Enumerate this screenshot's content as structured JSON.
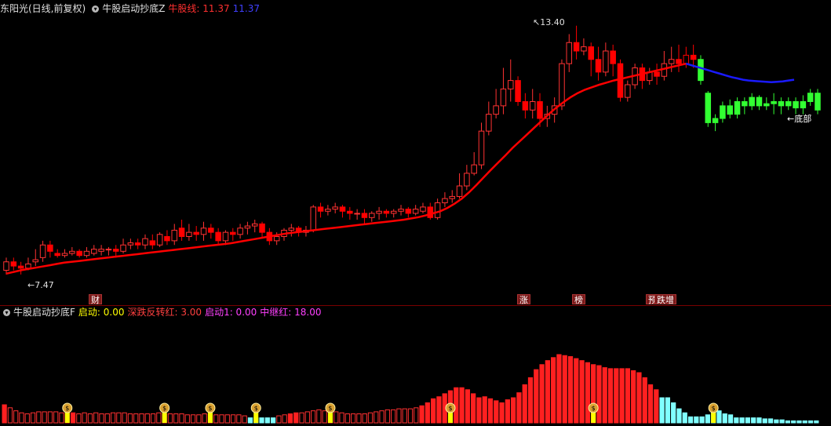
{
  "top_header": {
    "stock_name": "东阳光(日线,前复权)",
    "indicator_name": "牛股启动抄底Z",
    "line_label": "牛股线: 11.37",
    "line_value2": "11.37"
  },
  "bottom_header": {
    "indicator_name": "牛股启动抄底F",
    "items": [
      {
        "label": "启动: 0.00",
        "color": "#ffff00"
      },
      {
        "label": "深跌反转红: 3.00",
        "color": "#ff4040"
      },
      {
        "label": "启动1: 0.00",
        "color": "#ff40ff"
      },
      {
        "label": "中继红: 18.00",
        "color": "#ff40ff"
      }
    ]
  },
  "price_labels": {
    "high": "13.40",
    "low": "7.47",
    "bottom_tag": "底部"
  },
  "markers": [
    {
      "text": "财",
      "color": "#7a1a1a"
    },
    {
      "text": "涨",
      "color": "#7a1a1a"
    },
    {
      "text": "榜",
      "color": "#7a1a1a"
    },
    {
      "text": "预",
      "color": "#7a1a1a"
    },
    {
      "text": "跌增",
      "color": "#7a1a1a"
    }
  ],
  "colors": {
    "up": "#ff3232",
    "down": "#ff0000",
    "green": "#32ff32",
    "line_red": "#ff0000",
    "line_blue": "#1a1aff",
    "cyan": "#80ffff",
    "bg": "#000000"
  },
  "chart_data": [
    {
      "type": "candlestick",
      "ylim": [
        7.2,
        13.6
      ],
      "candles": [
        [
          7.6,
          7.8,
          7.5,
          7.9
        ],
        [
          7.8,
          7.7,
          7.6,
          7.9
        ],
        [
          7.7,
          7.65,
          7.5,
          7.8
        ],
        [
          7.65,
          7.75,
          7.6,
          7.9
        ],
        [
          7.8,
          7.85,
          7.7,
          8.1
        ],
        [
          7.9,
          8.2,
          7.8,
          8.3
        ],
        [
          8.2,
          8.05,
          7.9,
          8.3
        ],
        [
          8.0,
          7.95,
          7.9,
          8.1
        ],
        [
          7.95,
          8.0,
          7.9,
          8.1
        ],
        [
          8.0,
          8.05,
          7.95,
          8.15
        ],
        [
          8.05,
          7.95,
          7.9,
          8.1
        ],
        [
          7.95,
          8.05,
          7.9,
          8.15
        ],
        [
          8.0,
          8.1,
          7.95,
          8.2
        ],
        [
          8.05,
          8.1,
          7.95,
          8.2
        ],
        [
          8.1,
          8.1,
          7.95,
          8.15
        ],
        [
          8.1,
          8.05,
          7.9,
          8.2
        ],
        [
          8.05,
          8.2,
          8.0,
          8.35
        ],
        [
          8.2,
          8.25,
          8.1,
          8.35
        ],
        [
          8.25,
          8.2,
          8.1,
          8.35
        ],
        [
          8.2,
          8.35,
          8.1,
          8.45
        ],
        [
          8.3,
          8.2,
          8.1,
          8.45
        ],
        [
          8.2,
          8.45,
          8.15,
          8.5
        ],
        [
          8.4,
          8.3,
          8.2,
          8.55
        ],
        [
          8.3,
          8.55,
          8.2,
          8.7
        ],
        [
          8.6,
          8.4,
          8.3,
          8.8
        ],
        [
          8.4,
          8.5,
          8.3,
          8.7
        ],
        [
          8.5,
          8.45,
          8.3,
          8.65
        ],
        [
          8.45,
          8.6,
          8.3,
          8.75
        ],
        [
          8.6,
          8.5,
          8.35,
          8.7
        ],
        [
          8.5,
          8.3,
          8.2,
          8.6
        ],
        [
          8.3,
          8.5,
          8.2,
          8.55
        ],
        [
          8.5,
          8.45,
          8.3,
          8.6
        ],
        [
          8.45,
          8.6,
          8.35,
          8.7
        ],
        [
          8.6,
          8.65,
          8.45,
          8.75
        ],
        [
          8.65,
          8.7,
          8.5,
          8.8
        ],
        [
          8.7,
          8.5,
          8.35,
          8.75
        ],
        [
          8.5,
          8.3,
          8.2,
          8.6
        ],
        [
          8.3,
          8.4,
          8.2,
          8.5
        ],
        [
          8.4,
          8.55,
          8.3,
          8.6
        ],
        [
          8.55,
          8.6,
          8.4,
          8.7
        ],
        [
          8.6,
          8.5,
          8.4,
          8.65
        ],
        [
          8.5,
          8.55,
          8.4,
          8.65
        ],
        [
          8.55,
          9.1,
          8.5,
          9.15
        ],
        [
          9.1,
          9.0,
          8.85,
          9.2
        ],
        [
          9.0,
          9.05,
          8.9,
          9.15
        ],
        [
          9.05,
          9.1,
          8.95,
          9.2
        ],
        [
          9.1,
          9.0,
          8.85,
          9.15
        ],
        [
          9.0,
          8.95,
          8.8,
          9.1
        ],
        [
          8.95,
          8.95,
          8.8,
          9.05
        ],
        [
          8.95,
          8.85,
          8.7,
          9.05
        ],
        [
          8.85,
          8.95,
          8.75,
          9.0
        ],
        [
          8.95,
          9.0,
          8.8,
          9.1
        ],
        [
          9.0,
          8.95,
          8.85,
          9.05
        ],
        [
          8.95,
          9.0,
          8.85,
          9.05
        ],
        [
          9.0,
          9.05,
          8.9,
          9.15
        ],
        [
          9.05,
          8.95,
          8.85,
          9.1
        ],
        [
          8.95,
          9.05,
          8.9,
          9.15
        ],
        [
          9.0,
          9.1,
          8.95,
          9.2
        ],
        [
          9.1,
          8.85,
          8.8,
          9.2
        ],
        [
          8.85,
          9.2,
          8.8,
          9.3
        ],
        [
          9.2,
          9.3,
          9.1,
          9.45
        ],
        [
          9.3,
          9.35,
          9.2,
          9.5
        ],
        [
          9.35,
          9.6,
          9.3,
          9.9
        ],
        [
          9.6,
          9.9,
          9.5,
          10.1
        ],
        [
          9.9,
          10.1,
          9.85,
          10.4
        ],
        [
          10.1,
          10.9,
          10.0,
          11.1
        ],
        [
          10.9,
          11.3,
          10.8,
          11.6
        ],
        [
          11.3,
          11.5,
          11.2,
          11.9
        ],
        [
          11.5,
          11.9,
          11.3,
          12.4
        ],
        [
          11.9,
          12.1,
          11.6,
          12.6
        ],
        [
          12.1,
          11.6,
          11.5,
          12.2
        ],
        [
          11.6,
          11.4,
          11.2,
          11.8
        ],
        [
          11.4,
          11.6,
          11.2,
          11.9
        ],
        [
          11.6,
          11.2,
          11.0,
          11.8
        ],
        [
          11.2,
          11.3,
          11.0,
          11.5
        ],
        [
          11.3,
          11.5,
          11.1,
          11.7
        ],
        [
          11.5,
          12.5,
          11.4,
          12.6
        ],
        [
          12.5,
          13.0,
          12.3,
          13.2
        ],
        [
          13.0,
          12.8,
          12.6,
          13.4
        ],
        [
          12.8,
          12.9,
          12.7,
          13.1
        ],
        [
          12.9,
          12.6,
          12.2,
          13.0
        ],
        [
          12.6,
          12.3,
          12.1,
          12.9
        ],
        [
          12.3,
          12.8,
          12.2,
          13.0
        ],
        [
          12.8,
          12.5,
          12.2,
          12.95
        ],
        [
          12.5,
          11.7,
          11.6,
          12.6
        ],
        [
          11.7,
          12.0,
          11.6,
          12.1
        ],
        [
          12.0,
          12.4,
          11.9,
          12.5
        ],
        [
          12.4,
          12.1,
          11.9,
          12.5
        ],
        [
          12.1,
          12.3,
          12.0,
          12.4
        ],
        [
          12.3,
          12.2,
          12.0,
          12.5
        ],
        [
          12.2,
          12.5,
          12.1,
          12.8
        ],
        [
          12.5,
          12.6,
          12.3,
          12.9
        ],
        [
          12.6,
          12.5,
          12.3,
          12.95
        ],
        [
          12.5,
          12.7,
          12.4,
          12.9
        ],
        [
          12.7,
          12.6,
          12.4,
          12.95
        ],
        [
          12.6,
          12.1,
          12.0,
          12.7
        ],
        [
          11.8,
          11.1,
          11.0,
          11.85
        ],
        [
          11.1,
          11.2,
          10.9,
          11.3
        ],
        [
          11.2,
          11.5,
          11.1,
          11.6
        ],
        [
          11.5,
          11.3,
          11.2,
          11.65
        ],
        [
          11.3,
          11.6,
          11.2,
          11.7
        ],
        [
          11.6,
          11.5,
          11.3,
          11.7
        ],
        [
          11.5,
          11.7,
          11.4,
          11.8
        ],
        [
          11.7,
          11.5,
          11.4,
          11.75
        ],
        [
          11.5,
          11.55,
          11.4,
          11.7
        ],
        [
          11.55,
          11.6,
          11.3,
          11.8
        ],
        [
          11.6,
          11.5,
          11.3,
          11.7
        ],
        [
          11.5,
          11.6,
          11.4,
          11.7
        ],
        [
          11.6,
          11.45,
          11.3,
          11.7
        ],
        [
          11.45,
          11.6,
          11.3,
          11.75
        ],
        [
          11.6,
          11.8,
          11.5,
          11.9
        ],
        [
          11.8,
          11.4,
          11.3,
          11.9
        ]
      ],
      "ma_red": [
        7.52,
        7.56,
        7.6,
        7.63,
        7.66,
        7.69,
        7.72,
        7.75,
        7.78,
        7.8,
        7.82,
        7.84,
        7.86,
        7.88,
        7.9,
        7.92,
        7.94,
        7.96,
        7.98,
        8.0,
        8.02,
        8.04,
        8.06,
        8.08,
        8.1,
        8.12,
        8.14,
        8.16,
        8.18,
        8.2,
        8.22,
        8.24,
        8.27,
        8.3,
        8.33,
        8.36,
        8.39,
        8.42,
        8.45,
        8.48,
        8.5,
        8.52,
        8.54,
        8.56,
        8.58,
        8.6,
        8.62,
        8.64,
        8.66,
        8.68,
        8.7,
        8.72,
        8.74,
        8.76,
        8.78,
        8.8,
        8.83,
        8.86,
        8.9,
        8.95,
        9.0,
        9.08,
        9.18,
        9.3,
        9.45,
        9.62,
        9.8,
        9.98,
        10.15,
        10.32,
        10.5,
        10.66,
        10.82,
        10.98,
        11.14,
        11.3,
        11.45,
        11.58,
        11.7,
        11.8,
        11.88,
        11.94,
        12.0,
        12.05,
        12.1,
        12.14,
        12.18,
        12.22,
        12.26,
        12.3,
        12.34,
        12.38,
        12.42,
        12.46,
        12.5
      ],
      "ma_blue": [
        12.5,
        12.46,
        12.42,
        12.38,
        12.34,
        12.3,
        12.26,
        12.22,
        12.18,
        12.15,
        12.12,
        12.1,
        12.09,
        12.08,
        12.07,
        12.06,
        12.07,
        12.08,
        12.1,
        12.12
      ]
    },
    {
      "type": "bar",
      "ylim": [
        0,
        100
      ],
      "values": [
        18,
        15,
        12,
        10,
        9,
        10,
        11,
        11,
        11,
        11,
        10,
        10,
        10,
        9,
        10,
        9,
        10,
        9,
        9,
        10,
        10,
        10,
        9,
        9,
        9,
        9,
        9,
        10,
        9,
        9,
        9,
        9,
        8,
        8,
        8,
        9,
        9,
        8,
        8,
        8,
        8,
        8,
        7,
        5,
        5,
        5,
        5,
        5,
        7,
        8,
        9,
        10,
        10,
        11,
        12,
        13,
        12,
        12,
        11,
        10,
        9,
        9,
        9,
        9,
        10,
        11,
        12,
        13,
        13,
        14,
        14,
        14,
        15,
        17,
        20,
        24,
        26,
        29,
        32,
        35,
        35,
        33,
        29,
        25,
        26,
        24,
        22,
        20,
        23,
        25,
        30,
        38,
        45,
        53,
        58,
        62,
        65,
        68,
        67,
        66,
        64,
        62,
        60,
        58,
        57,
        55,
        54,
        54,
        54,
        54,
        52,
        50,
        45,
        38,
        33,
        25,
        25,
        20,
        14,
        10,
        6,
        6,
        6,
        8,
        10,
        12,
        9,
        8,
        5,
        5,
        5,
        5,
        5,
        4,
        4,
        3,
        3,
        2,
        2,
        2,
        2,
        2,
        2
      ],
      "colors": [
        "r",
        "o",
        "o",
        "o",
        "o",
        "o",
        "o",
        "o",
        "o",
        "o",
        "o",
        "r",
        "r",
        "o",
        "o",
        "o",
        "o",
        "o",
        "o",
        "o",
        "o",
        "o",
        "o",
        "o",
        "o",
        "o",
        "o",
        "o",
        "o",
        "o",
        "o",
        "o",
        "o",
        "o",
        "o",
        "o",
        "o",
        "o",
        "o",
        "o",
        "o",
        "o",
        "o",
        "c",
        "c",
        "c",
        "c",
        "c",
        "o",
        "o",
        "r",
        "r",
        "o",
        "o",
        "o",
        "o",
        "o",
        "o",
        "o",
        "o",
        "o",
        "o",
        "o",
        "o",
        "o",
        "o",
        "o",
        "o",
        "o",
        "o",
        "o",
        "o",
        "o",
        "r",
        "r",
        "r",
        "r",
        "r",
        "r",
        "r",
        "r",
        "r",
        "r",
        "r",
        "r",
        "r",
        "r",
        "r",
        "r",
        "r",
        "r",
        "r",
        "r",
        "r",
        "r",
        "r",
        "r",
        "r",
        "r",
        "r",
        "r",
        "r",
        "r",
        "r",
        "r",
        "r",
        "r",
        "r",
        "r",
        "r",
        "r",
        "r",
        "r",
        "r",
        "r",
        "c",
        "c",
        "c",
        "c",
        "c",
        "c",
        "c",
        "c",
        "c",
        "c",
        "c",
        "c",
        "c",
        "c",
        "c",
        "c",
        "c",
        "c",
        "c",
        "c",
        "c",
        "c",
        "c",
        "c",
        "c",
        "c",
        "c",
        "c",
        "c"
      ]
    }
  ]
}
